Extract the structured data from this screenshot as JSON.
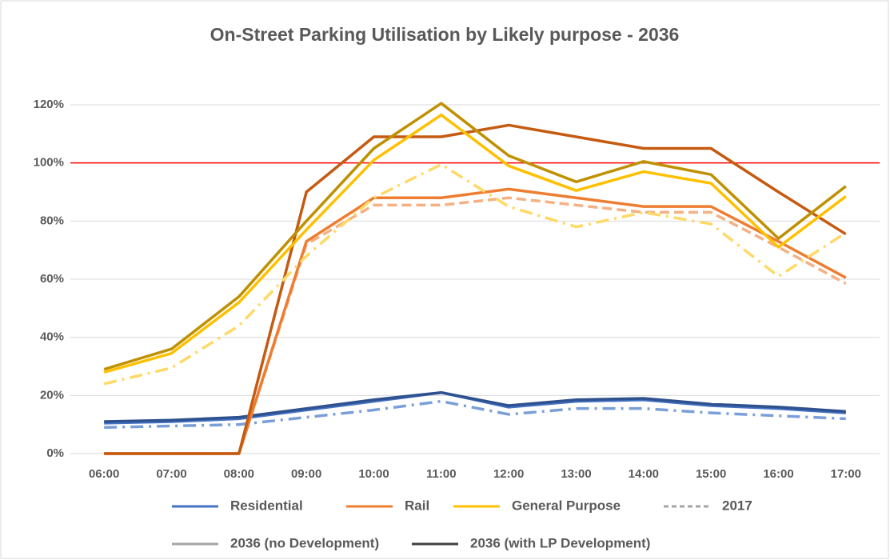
{
  "chart_data": {
    "type": "line",
    "title": "On-Street Parking Utilisation by Likely purpose - 2036",
    "categories": [
      "06:00",
      "07:00",
      "08:00",
      "09:00",
      "10:00",
      "11:00",
      "12:00",
      "13:00",
      "14:00",
      "15:00",
      "16:00",
      "17:00"
    ],
    "ylim": [
      0,
      120
    ],
    "yticks": [
      {
        "value": 0,
        "label": "0%"
      },
      {
        "value": 20,
        "label": "20%"
      },
      {
        "value": 40,
        "label": "40%"
      },
      {
        "value": 60,
        "label": "60%"
      },
      {
        "value": 80,
        "label": "80%"
      },
      {
        "value": 100,
        "label": "100%"
      },
      {
        "value": 120,
        "label": "120%"
      }
    ],
    "grid": true,
    "reference_line": {
      "value": 100,
      "color": "#ff0000"
    },
    "series": [
      {
        "color": "#7a9fd8",
        "style": "dashdot",
        "values": [
          9,
          9.5,
          10,
          12.5,
          15,
          18,
          13.5,
          15.5,
          15.5,
          14,
          13,
          12
        ]
      },
      {
        "color": "#4472c4",
        "style": "solid",
        "values": [
          10.5,
          11,
          12,
          15,
          18,
          21,
          16,
          18,
          18.5,
          16.5,
          15.5,
          14
        ]
      },
      {
        "color": "#2f528f",
        "style": "solid",
        "values": [
          11,
          11.5,
          12.5,
          15.5,
          18.5,
          21,
          16.5,
          18.5,
          19,
          17,
          16,
          14.5
        ]
      },
      {
        "color": "#f4b183",
        "style": "dash",
        "values": [
          0,
          0,
          0,
          72,
          85.5,
          85.5,
          88,
          85.5,
          83,
          83,
          71,
          58.5
        ]
      },
      {
        "color": "#ed7d31",
        "style": "solid",
        "values": [
          0,
          0,
          0,
          73,
          88,
          88,
          91,
          88,
          85,
          85,
          73,
          60.5
        ]
      },
      {
        "color": "#c55a11",
        "style": "solid",
        "values": [
          0,
          0,
          0,
          90,
          109,
          109,
          113,
          109,
          105,
          105,
          90,
          75.5
        ]
      },
      {
        "color": "#ffd966",
        "style": "dashdot",
        "values": [
          24,
          29.5,
          44,
          68,
          88,
          99.5,
          85,
          78,
          83,
          79,
          61,
          76
        ]
      },
      {
        "color": "#ffc000",
        "style": "solid",
        "values": [
          28,
          34.5,
          52,
          77,
          101,
          116.5,
          99,
          90.5,
          97,
          93,
          71,
          88.5
        ]
      },
      {
        "color": "#bf9000",
        "style": "solid",
        "values": [
          29,
          36,
          54,
          80,
          105,
          120.5,
          102.5,
          93.5,
          100.5,
          96,
          74,
          92
        ]
      }
    ],
    "legend": [
      {
        "label": "Residential",
        "color": "#4472c4",
        "style": "solid"
      },
      {
        "label": "Rail",
        "color": "#ed7d31",
        "style": "solid"
      },
      {
        "label": "General Purpose",
        "color": "#ffc000",
        "style": "solid"
      },
      {
        "label": "2017",
        "color": "#a5a5a5",
        "style": "dash"
      },
      {
        "label": "2036 (no Development)",
        "color": "#a5a5a5",
        "style": "solid"
      },
      {
        "label": "2036 (with LP Development)",
        "color": "#404040",
        "style": "solid"
      }
    ]
  }
}
